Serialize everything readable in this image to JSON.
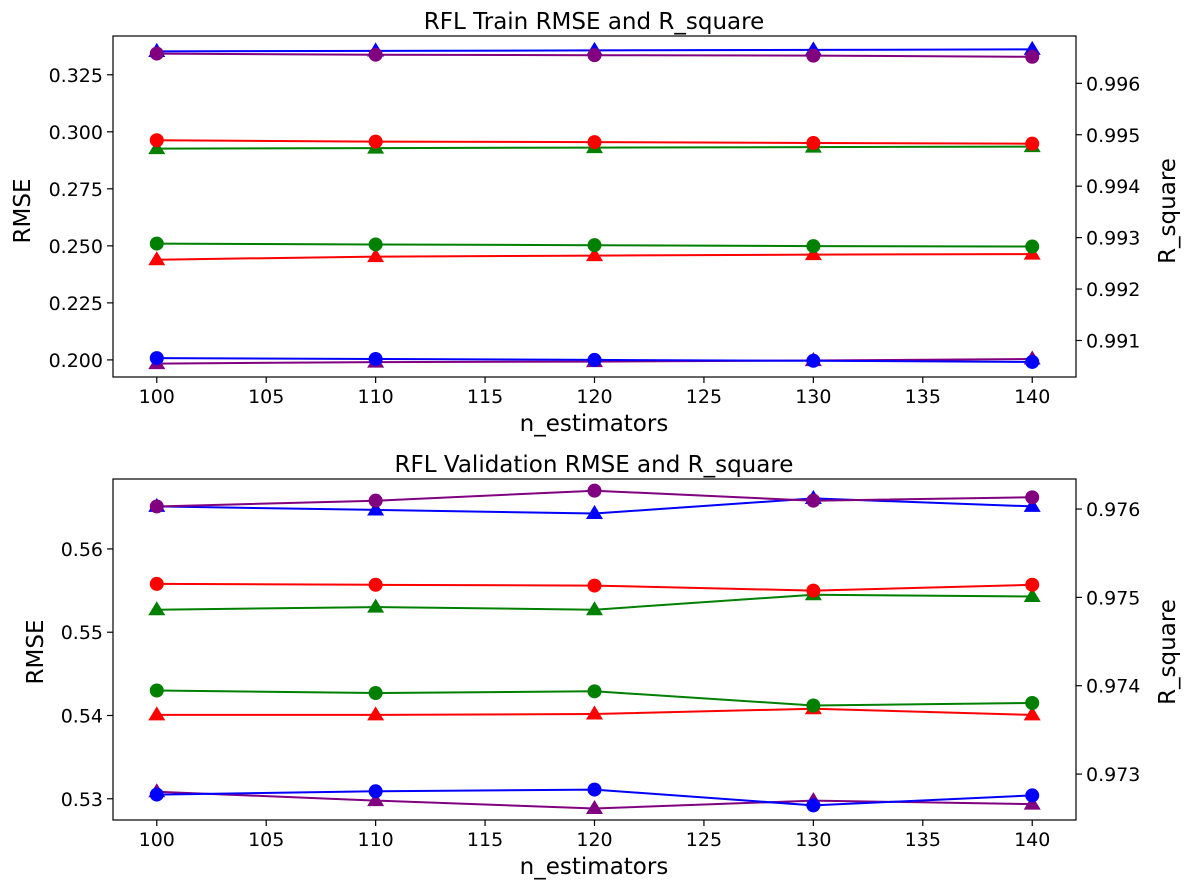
{
  "chart_data": [
    {
      "type": "line",
      "title": "RFL Train RMSE and R_square",
      "xlabel": "n_estimators",
      "ylabel": "RMSE",
      "y2label": "R_square",
      "x": [
        100,
        110,
        120,
        130,
        140
      ],
      "xticks": [
        100,
        105,
        110,
        115,
        120,
        125,
        130,
        135,
        140
      ],
      "xlim": [
        98,
        142
      ],
      "ylim": [
        0.1925,
        0.342
      ],
      "yticks": [
        0.2,
        0.225,
        0.25,
        0.275,
        0.3,
        0.325
      ],
      "ytick_labels": [
        "0.200",
        "0.225",
        "0.250",
        "0.275",
        "0.300",
        "0.325"
      ],
      "y2lim": [
        0.99029,
        0.99692
      ],
      "y2ticks": [
        0.991,
        0.992,
        0.993,
        0.994,
        0.995,
        0.996
      ],
      "y2tick_labels": [
        "0.991",
        "0.992",
        "0.993",
        "0.994",
        "0.995",
        "0.996"
      ],
      "grid": false,
      "series": [
        {
          "axis": "left",
          "marker": "circle",
          "color": "#0000ff",
          "values": [
            0.2008,
            0.2004,
            0.2,
            0.1996,
            0.1991
          ]
        },
        {
          "axis": "left",
          "marker": "circle",
          "color": "#ff0000",
          "values": [
            0.2963,
            0.2957,
            0.2955,
            0.2951,
            0.2948
          ]
        },
        {
          "axis": "left",
          "marker": "circle",
          "color": "#008000",
          "values": [
            0.251,
            0.2506,
            0.2503,
            0.2499,
            0.2497
          ]
        },
        {
          "axis": "left",
          "marker": "circle",
          "color": "#800080",
          "values": [
            0.3343,
            0.3338,
            0.3336,
            0.3334,
            0.3329
          ]
        },
        {
          "axis": "right",
          "marker": "triangle",
          "color": "#0000ff",
          "values": [
            0.99662,
            0.99663,
            0.99664,
            0.99665,
            0.99666
          ]
        },
        {
          "axis": "right",
          "marker": "triangle",
          "color": "#ff0000",
          "values": [
            0.99257,
            0.99263,
            0.99265,
            0.99267,
            0.99268
          ]
        },
        {
          "axis": "right",
          "marker": "triangle",
          "color": "#008000",
          "values": [
            0.99473,
            0.99474,
            0.99475,
            0.99476,
            0.99477
          ]
        },
        {
          "axis": "right",
          "marker": "triangle",
          "color": "#800080",
          "values": [
            0.99055,
            0.99058,
            0.99059,
            0.99061,
            0.99064
          ]
        }
      ]
    },
    {
      "type": "line",
      "title": "RFL Validation RMSE and R_square",
      "xlabel": "n_estimators",
      "ylabel": "RMSE",
      "y2label": "R_square",
      "x": [
        100,
        110,
        120,
        130,
        140
      ],
      "xticks": [
        100,
        105,
        110,
        115,
        120,
        125,
        130,
        135,
        140
      ],
      "xlim": [
        98,
        142
      ],
      "ylim": [
        0.52745,
        0.5684
      ],
      "yticks": [
        0.53,
        0.54,
        0.55,
        0.56
      ],
      "ytick_labels": [
        "0.53",
        "0.54",
        "0.55",
        "0.56"
      ],
      "y2lim": [
        0.97248,
        0.97634
      ],
      "y2ticks": [
        0.973,
        0.974,
        0.975,
        0.976
      ],
      "y2tick_labels": [
        "0.973",
        "0.974",
        "0.975",
        "0.976"
      ],
      "grid": false,
      "series": [
        {
          "axis": "left",
          "marker": "circle",
          "color": "#0000ff",
          "values": [
            0.5305,
            0.5309,
            0.5311,
            0.5292,
            0.5304
          ]
        },
        {
          "axis": "left",
          "marker": "circle",
          "color": "#ff0000",
          "values": [
            0.5558,
            0.5557,
            0.5556,
            0.555,
            0.5557
          ]
        },
        {
          "axis": "left",
          "marker": "circle",
          "color": "#008000",
          "values": [
            0.543,
            0.5427,
            0.5429,
            0.5412,
            0.5415
          ]
        },
        {
          "axis": "left",
          "marker": "circle",
          "color": "#800080",
          "values": [
            0.5651,
            0.5658,
            0.567,
            0.5658,
            0.5662
          ]
        },
        {
          "axis": "right",
          "marker": "triangle",
          "color": "#0000ff",
          "values": [
            0.97603,
            0.97599,
            0.97595,
            0.97612,
            0.97603
          ]
        },
        {
          "axis": "right",
          "marker": "triangle",
          "color": "#ff0000",
          "values": [
            0.97367,
            0.97367,
            0.97368,
            0.97374,
            0.97367
          ]
        },
        {
          "axis": "right",
          "marker": "triangle",
          "color": "#008000",
          "values": [
            0.97486,
            0.97489,
            0.97486,
            0.97503,
            0.97501
          ]
        },
        {
          "axis": "right",
          "marker": "triangle",
          "color": "#800080",
          "values": [
            0.9728,
            0.9727,
            0.97261,
            0.9727,
            0.97266
          ]
        }
      ]
    }
  ]
}
